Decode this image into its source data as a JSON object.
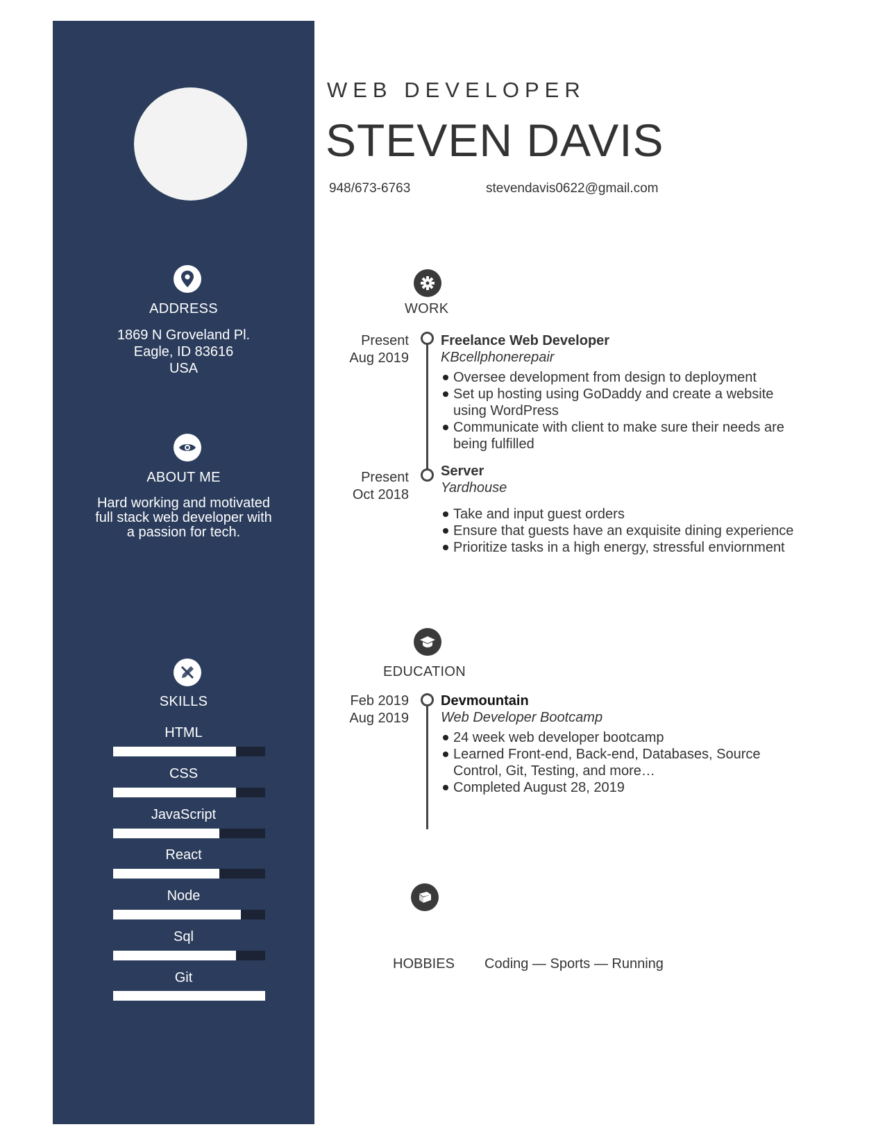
{
  "header": {
    "job_title": "WEB DEVELOPER",
    "name": "STEVEN DAVIS",
    "phone": "948/673-6763",
    "email": "stevendavis0622@gmail.com"
  },
  "sidebar": {
    "address": {
      "icon": "map-pin-icon",
      "heading": "ADDRESS",
      "line1": "1869 N Groveland Pl.",
      "line2": "Eagle, ID 83616",
      "line3": "USA"
    },
    "about": {
      "icon": "eye-icon",
      "heading": "ABOUT ME",
      "line1": "Hard working and motivated",
      "line2": "full stack web developer with",
      "line3": "a passion for tech."
    },
    "skills": {
      "icon": "tools-icon",
      "heading": "SKILLS",
      "items": [
        {
          "name": "HTML",
          "level": 0.81
        },
        {
          "name": "CSS",
          "level": 0.81
        },
        {
          "name": "JavaScript",
          "level": 0.7
        },
        {
          "name": "React",
          "level": 0.7
        },
        {
          "name": "Node",
          "level": 0.84
        },
        {
          "name": "Sql",
          "level": 0.81
        },
        {
          "name": "Git",
          "level": 1.0
        }
      ]
    }
  },
  "work": {
    "icon": "gear-icon",
    "heading": "WORK",
    "entries": [
      {
        "date_end": "Present",
        "date_start": "Aug 2019",
        "title": "Freelance Web Developer",
        "org": "KBcellphonerepair",
        "bullets": [
          "Oversee development from design to deployment",
          "Set up hosting using GoDaddy and create a website using WordPress",
          "Communicate with client to make sure their needs are being fulfilled"
        ]
      },
      {
        "date_end": "Present",
        "date_start": "Oct 2018",
        "title": "Server",
        "org": "Yardhouse",
        "bullets": [
          "Take and input guest orders",
          "Ensure that guests have an exquisite dining experience",
          "Prioritize tasks in a high energy, stressful enviornment"
        ]
      }
    ]
  },
  "education": {
    "icon": "graduation-cap-icon",
    "heading": "EDUCATION",
    "entries": [
      {
        "date_start": "Feb 2019",
        "date_end": "Aug 2019",
        "title": "Devmountain",
        "org": "Web Developer Bootcamp",
        "bullets": [
          "24 week web developer bootcamp",
          "Learned Front-end, Back-end, Databases, Source Control, Git, Testing, and more…",
          "Completed August 28, 2019"
        ]
      }
    ]
  },
  "hobbies": {
    "icon": "book-icon",
    "heading": "HOBBIES",
    "text": "Coding — Sports — Running"
  },
  "colors": {
    "sidebar": "#2b3c5c",
    "skill_track": "#1b2334",
    "text": "#333333"
  }
}
